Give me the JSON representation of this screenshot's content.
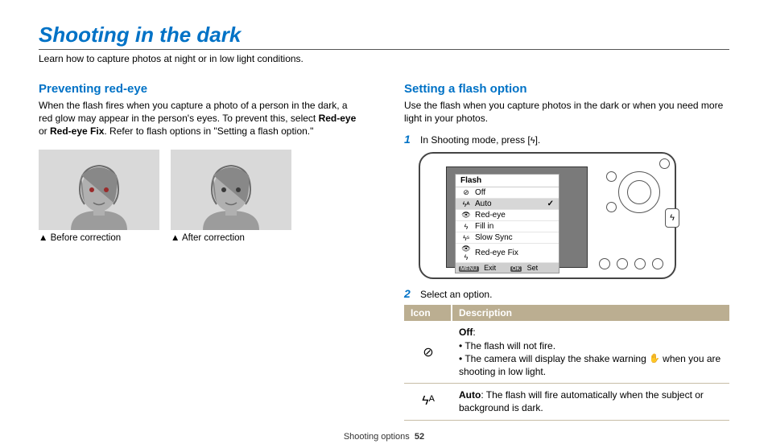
{
  "page": {
    "title": "Shooting in the dark",
    "subtitle": "Learn how to capture photos at night or in low light conditions.",
    "footer_label": "Shooting options",
    "footer_page": "52"
  },
  "left": {
    "heading": "Preventing red-eye",
    "p1_a": "When the flash fires when you capture a photo of a person in the dark, a red glow may appear in the person's eyes. To prevent this, select ",
    "p1_b1": "Red-eye",
    "p1_or": " or ",
    "p1_b2": "Red-eye Fix",
    "p1_c": ". Refer to flash options in \"Setting a flash option.\"",
    "cap1": "▲ Before correction",
    "cap2": "▲ After correction"
  },
  "right": {
    "heading": "Setting a flash option",
    "p1": "Use the flash when you capture photos in the dark or when you need more light in your photos.",
    "step1_a": "In Shooting mode, press [",
    "step1_b": "].",
    "step2": "Select an option.",
    "menu": {
      "title": "Flash",
      "items": [
        {
          "icon": "⊘",
          "label": "Off",
          "selected": false
        },
        {
          "icon": "ϟᴬ",
          "label": "Auto",
          "selected": true
        },
        {
          "icon": "👁",
          "label": "Red-eye",
          "selected": false
        },
        {
          "icon": "ϟ",
          "label": "Fill in",
          "selected": false
        },
        {
          "icon": "ϟˢ",
          "label": "Slow Sync",
          "selected": false
        },
        {
          "icon": "👁ϟ",
          "label": "Red-eye Fix",
          "selected": false
        }
      ],
      "footer_exit_icon": "MENU",
      "footer_exit": "Exit",
      "footer_set_icon": "OK",
      "footer_set": "Set"
    },
    "table": {
      "header_icon": "Icon",
      "header_desc": "Description",
      "row1_title": "Off",
      "row1_colon": ":",
      "row1_b1": "The flash will not fire.",
      "row1_b2a": "The camera will display the shake warning ",
      "row1_b2b": " when you are shooting in low light.",
      "row2_title": "Auto",
      "row2_desc": ": The flash will fire automatically when the subject or background is dark."
    }
  },
  "icons": {
    "flash_glyph": "ϟ",
    "off_glyph": "⊘",
    "auto_glyph": "ϟᴬ",
    "shake_glyph": "✋"
  },
  "colors": {
    "brand_blue": "#0072c6",
    "table_header_bg": "#bbae91",
    "lcd_bg": "#7a7a7a",
    "portrait_bg": "#d9d9d9"
  }
}
